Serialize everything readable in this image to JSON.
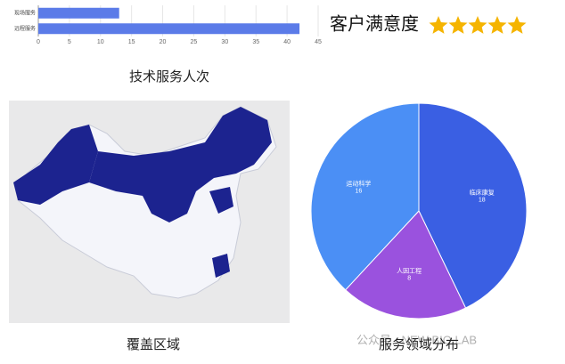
{
  "chart_data": [
    {
      "type": "bar",
      "orientation": "horizontal",
      "title": "技术服务人次",
      "categories": [
        "现场服务",
        "远程服务"
      ],
      "values": [
        13,
        42
      ],
      "color": "#5b7be8",
      "xlim": [
        0,
        45
      ],
      "xticks": [
        0,
        5,
        10,
        15,
        20,
        25,
        30,
        35,
        40,
        45
      ],
      "grid": true
    },
    {
      "type": "pie",
      "title": "服务领域分布",
      "categories": [
        "临床康复",
        "人因工程",
        "运动科学"
      ],
      "values": [
        18,
        8,
        16
      ],
      "colors": [
        "#3a5fe3",
        "#9a52de",
        "#4b8ff5"
      ]
    }
  ],
  "satisfaction": {
    "title": "客户满意度",
    "stars": 5,
    "color": "#f5b400"
  },
  "map": {
    "caption": "覆盖区域"
  },
  "watermark": "公众号 · NEW BIO LAB"
}
